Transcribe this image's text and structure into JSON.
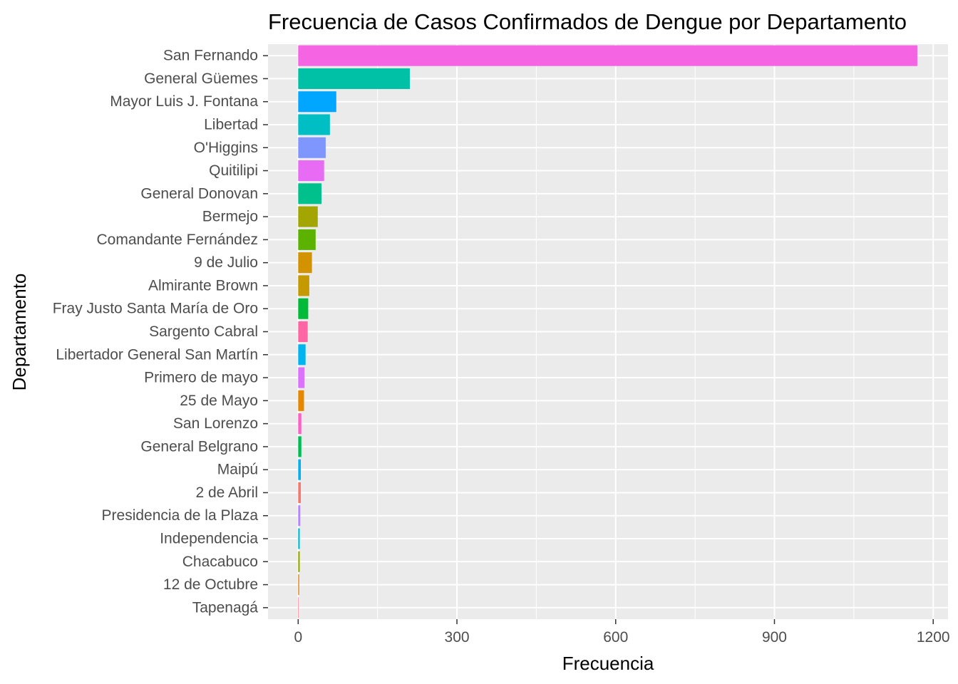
{
  "chart_data": {
    "type": "bar",
    "orientation": "horizontal",
    "title": "Frecuencia de Casos Confirmados de Dengue por Departamento",
    "xlabel": "Frecuencia",
    "ylabel": "Departamento",
    "xlim": [
      -57,
      1228
    ],
    "xticks": [
      0,
      300,
      600,
      900,
      1200
    ],
    "x_tick_labels": [
      "0",
      "300",
      "600",
      "900",
      "1200"
    ],
    "grid": true,
    "legend": "none",
    "categories": [
      "San Fernando",
      "General Güemes",
      "Mayor Luis J. Fontana",
      "Libertad",
      "O'Higgins",
      "Quitilipi",
      "General Donovan",
      "Bermejo",
      "Comandante Fernández",
      "9 de Julio",
      "Almirante Brown",
      "Fray Justo Santa María de Oro",
      "Sargento Cabral",
      "Libertador General San Martín",
      "Primero de mayo",
      "25 de Mayo",
      "San Lorenzo",
      "General Belgrano",
      "Maipú",
      "2 de Abril",
      "Presidencia de la Plaza",
      "Independencia",
      "Chacabuco",
      "12 de Octubre",
      "Tapenagá"
    ],
    "values": [
      1170,
      211,
      72,
      60,
      52,
      49,
      44,
      37,
      33,
      26,
      21,
      19,
      18,
      14,
      12,
      11,
      6,
      6,
      5,
      5,
      4,
      3,
      3,
      2,
      1
    ],
    "colors": [
      "#F564E3",
      "#00C0A5",
      "#00A6FF",
      "#00BFC4",
      "#7F96FF",
      "#E76BF3",
      "#00C08B",
      "#A3A500",
      "#5BB300",
      "#D39200",
      "#C49A00",
      "#00BA38",
      "#FF67A4",
      "#00B4EF",
      "#DB72FB",
      "#E58700",
      "#FF61C3",
      "#00BC55",
      "#00B0F6",
      "#F8766D",
      "#B385FF",
      "#00BBDA",
      "#99A800",
      "#E7861B",
      "#FC717F"
    ]
  }
}
